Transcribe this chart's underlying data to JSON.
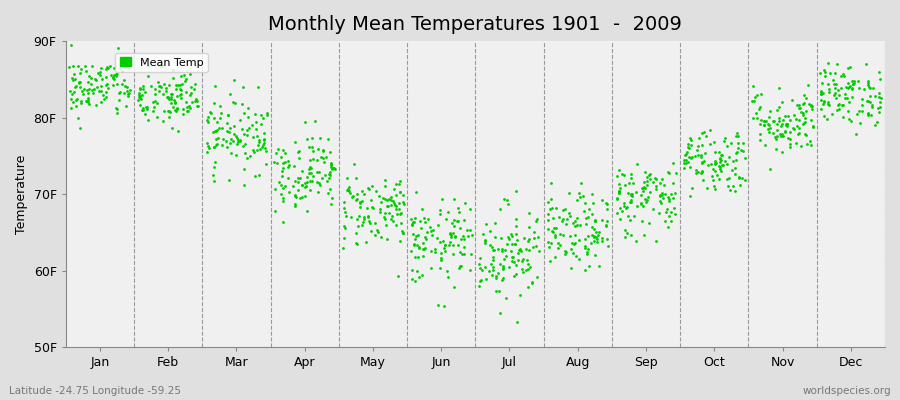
{
  "title": "Monthly Mean Temperatures 1901  -  2009",
  "ylabel": "Temperature",
  "ylim": [
    50,
    90
  ],
  "yticks": [
    50,
    60,
    70,
    80,
    90
  ],
  "ytick_labels": [
    "50F",
    "60F",
    "70F",
    "80F",
    "90F"
  ],
  "month_labels": [
    "Jan",
    "Feb",
    "Mar",
    "Apr",
    "May",
    "Jun",
    "Jul",
    "Aug",
    "Sep",
    "Oct",
    "Nov",
    "Dec"
  ],
  "dot_color": "#00cc00",
  "figure_bg_color": "#e0e0e0",
  "plot_bg_color": "#f0f0f0",
  "title_fontsize": 14,
  "axis_fontsize": 9,
  "legend_label": "Mean Temp",
  "bottom_left_text": "Latitude -24.75 Longitude -59.25",
  "bottom_right_text": "worldspecies.org",
  "n_years": 109,
  "monthly_mean_F": [
    84.0,
    82.5,
    78.0,
    73.0,
    68.0,
    63.5,
    62.5,
    65.0,
    69.5,
    74.5,
    79.5,
    83.0
  ],
  "monthly_std_F": [
    2.0,
    2.0,
    2.5,
    2.5,
    2.5,
    2.8,
    3.2,
    2.5,
    2.5,
    2.2,
    2.2,
    2.0
  ],
  "seed": 42
}
